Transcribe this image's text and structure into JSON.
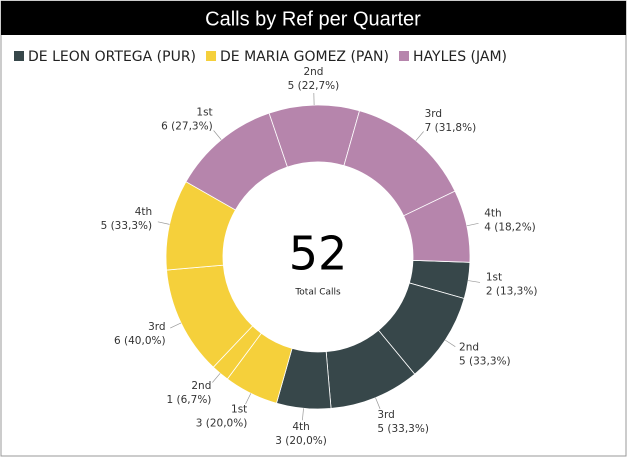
{
  "chart_data": {
    "type": "donut",
    "title": "Calls by Ref per Quarter",
    "categories": [
      "1st",
      "2nd",
      "3rd",
      "4th"
    ],
    "series": [
      {
        "name": "DE LEON ORTEGA (PUR)",
        "color": "#37474a",
        "values": [
          2,
          5,
          5,
          3
        ],
        "value_labels": [
          "2 (13,3%)",
          "5 (33,3%)",
          "5 (33,3%)",
          "3 (20,0%)"
        ]
      },
      {
        "name": "DE MARIA GOMEZ (PAN)",
        "color": "#f5d03b",
        "values": [
          3,
          1,
          6,
          5
        ],
        "value_labels": [
          "3 (20,0%)",
          "1 (6,7%)",
          "6 (40,0%)",
          "5 (33,3%)"
        ]
      },
      {
        "name": "HAYLES (JAM)",
        "color": "#b685ac",
        "values": [
          6,
          5,
          7,
          4
        ],
        "value_labels": [
          "6 (27,3%)",
          "5 (22,7%)",
          "7 (31,8%)",
          "4 (18,2%)"
        ]
      }
    ],
    "total": 52,
    "total_label": "Total Calls"
  }
}
